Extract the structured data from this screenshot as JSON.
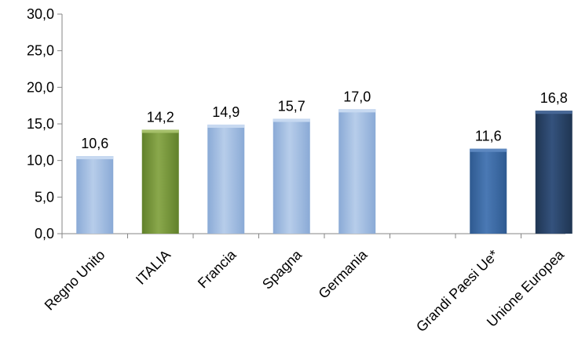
{
  "chart_data": {
    "type": "bar",
    "categories": [
      "Regno Unito",
      "ITALIA",
      "Francia",
      "Spagna",
      "Germania",
      "",
      "Grandi Paesi Ue*",
      "Unione Europea"
    ],
    "values": [
      10.6,
      14.2,
      14.9,
      15.7,
      17.0,
      null,
      11.6,
      16.8
    ],
    "data_labels": [
      "10,6",
      "14,2",
      "14,9",
      "15,7",
      "17,0",
      "",
      "11,6",
      "16,8"
    ],
    "ylim": [
      0,
      30
    ],
    "yticks": [
      0,
      5,
      10,
      15,
      20,
      25,
      30
    ],
    "ytick_labels": [
      "0,0",
      "5,0",
      "10,0",
      "15,0",
      "20,0",
      "25,0",
      "30,0"
    ],
    "grid": false,
    "legend": "none",
    "colors": [
      "#9dbbe3",
      "#77933c",
      "#9dbbe3",
      "#9dbbe3",
      "#9dbbe3",
      "",
      "#3e6aa3",
      "#2a4468"
    ]
  }
}
